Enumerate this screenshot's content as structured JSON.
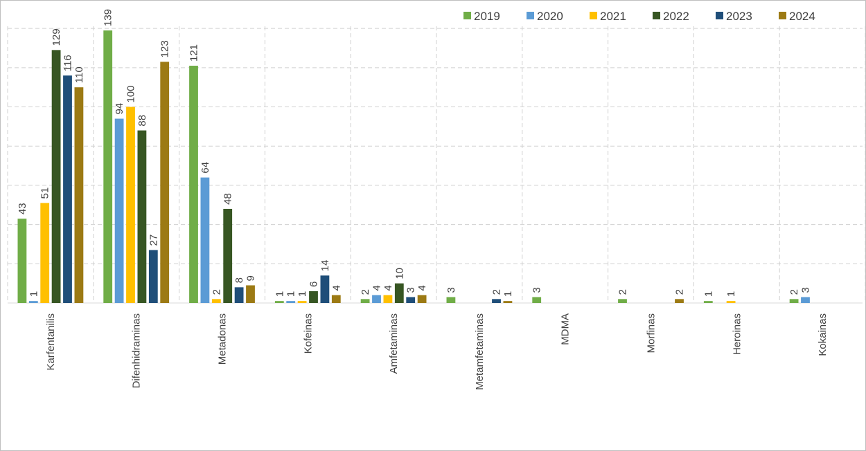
{
  "chart_data": {
    "type": "bar",
    "categories": [
      "Karfentanilis",
      "Difenhidraminas",
      "Metadonas",
      "Kofeinas",
      "Amfetaminas",
      "Metamfetaminas",
      "MDMA",
      "Morfinas",
      "Heroinas",
      "Kokainas"
    ],
    "series": [
      {
        "name": "2019",
        "color": "#70ad47",
        "values": [
          43,
          139,
          121,
          1,
          2,
          3,
          3,
          2,
          1,
          2
        ]
      },
      {
        "name": "2020",
        "color": "#5b9bd5",
        "values": [
          1,
          94,
          64,
          1,
          4,
          null,
          null,
          null,
          null,
          3
        ]
      },
      {
        "name": "2021",
        "color": "#ffc000",
        "values": [
          51,
          100,
          2,
          1,
          4,
          null,
          null,
          null,
          1,
          null
        ]
      },
      {
        "name": "2022",
        "color": "#375623",
        "values": [
          129,
          88,
          48,
          6,
          10,
          null,
          null,
          null,
          null,
          null
        ]
      },
      {
        "name": "2023",
        "color": "#1f4e79",
        "values": [
          116,
          27,
          8,
          14,
          3,
          2,
          null,
          null,
          null,
          null
        ]
      },
      {
        "name": "2024",
        "color": "#9c7a14",
        "values": [
          110,
          123,
          9,
          4,
          4,
          1,
          null,
          2,
          null,
          null
        ]
      }
    ],
    "ylim": [
      0,
      140
    ],
    "grid": true,
    "legend_position": "top-right"
  }
}
